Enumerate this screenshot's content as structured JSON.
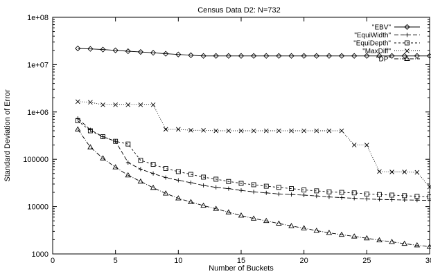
{
  "chart_data": {
    "type": "line",
    "title": "Census Data D2: N=732",
    "xlabel": "Number of Buckets",
    "ylabel": "Standard Deviation of Error",
    "y_scale": "log",
    "xlim": [
      0,
      30
    ],
    "ylim": [
      1000,
      100000000
    ],
    "x_ticks": [
      "0",
      "5",
      "10",
      "15",
      "20",
      "25",
      "30"
    ],
    "y_ticks": [
      "1000",
      "10000",
      "100000",
      "1e+06",
      "1e+07",
      "1e+08"
    ],
    "legend_position": "top-right",
    "grid": false,
    "x": [
      2,
      3,
      4,
      5,
      6,
      7,
      8,
      9,
      10,
      11,
      12,
      13,
      14,
      15,
      16,
      17,
      18,
      19,
      20,
      21,
      22,
      23,
      24,
      25,
      26,
      27,
      28,
      29,
      30
    ],
    "series": [
      {
        "name": "\"EBV\"",
        "marker": "diamond",
        "dash": "",
        "values": [
          22000000,
          21500000,
          20800000,
          20000000,
          19200000,
          18500000,
          17800000,
          17000000,
          16400000,
          15800000,
          15300000,
          15300000,
          15300000,
          15300000,
          15300000,
          15300000,
          15300000,
          15300000,
          15300000,
          15300000,
          15300000,
          15300000,
          15300000,
          15300000,
          15300000,
          15300000,
          15300000,
          15300000,
          15300000
        ]
      },
      {
        "name": "\"EquiWidth\"",
        "marker": "plus",
        "dash": "6,3",
        "values": [
          730000,
          420000,
          300000,
          240000,
          85000,
          62000,
          50000,
          41000,
          36000,
          32000,
          28000,
          25500,
          24000,
          22000,
          20500,
          19500,
          18500,
          18000,
          17500,
          16800,
          16000,
          15500,
          15000,
          14500,
          14200,
          14000,
          13800,
          13700,
          13500
        ]
      },
      {
        "name": "\"EquiDepth\"",
        "marker": "square",
        "dash": "3,3",
        "values": [
          650000,
          400000,
          300000,
          240000,
          210000,
          95000,
          78000,
          64000,
          55000,
          48000,
          42000,
          38000,
          34000,
          31000,
          29000,
          27000,
          25500,
          24000,
          22500,
          21500,
          20500,
          20000,
          19500,
          18500,
          18000,
          17500,
          17000,
          16500,
          16000
        ]
      },
      {
        "name": "\"MaxDiff\"",
        "marker": "x",
        "dash": "1,2",
        "values": [
          1650000,
          1600000,
          1420000,
          1420000,
          1420000,
          1420000,
          1420000,
          430000,
          430000,
          410000,
          410000,
          400000,
          400000,
          400000,
          400000,
          400000,
          400000,
          400000,
          400000,
          400000,
          400000,
          400000,
          200000,
          200000,
          55000,
          54000,
          54000,
          53000,
          26000
        ]
      },
      {
        "name": "\"DP\"",
        "marker": "triangle",
        "dash": "6,2,1,2",
        "values": [
          430000,
          180000,
          105000,
          68000,
          46000,
          34000,
          25000,
          19000,
          15000,
          12500,
          10500,
          9000,
          7600,
          6500,
          5600,
          5000,
          4400,
          3900,
          3500,
          3100,
          2800,
          2550,
          2350,
          2150,
          1950,
          1800,
          1650,
          1530,
          1420
        ]
      }
    ]
  }
}
